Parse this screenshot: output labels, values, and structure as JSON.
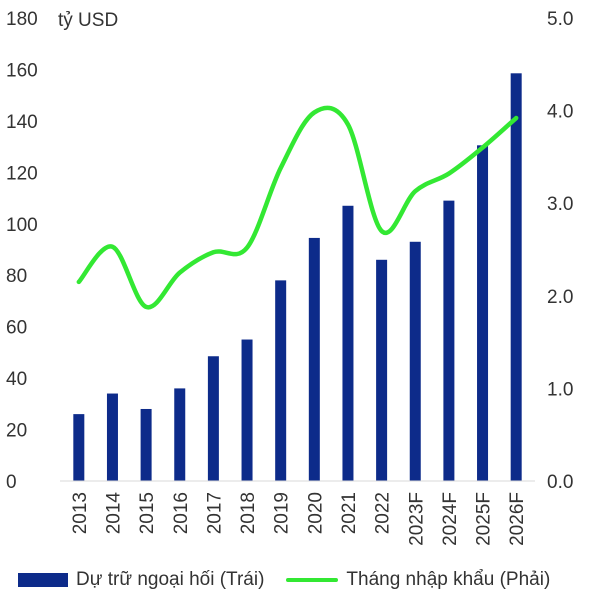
{
  "chart_data": {
    "type": "bar+line",
    "unit_label": "tỷ USD",
    "categories": [
      "2013",
      "2014",
      "2015",
      "2016",
      "2017",
      "2018",
      "2019",
      "2020",
      "2021",
      "2022",
      "2023F",
      "2024F",
      "2025F",
      "2026F"
    ],
    "series": [
      {
        "name": "Dự trữ ngoại hối (Trái)",
        "type": "bar",
        "axis": "left",
        "color": "#0d2b8a",
        "values": [
          26,
          34,
          28,
          36,
          48.5,
          55,
          78,
          94.5,
          107,
          86,
          93,
          109,
          130.5,
          158.5
        ]
      },
      {
        "name": "Tháng nhập khẩu (Phải)",
        "type": "line",
        "axis": "right",
        "color": "#33e833",
        "values": [
          2.15,
          2.53,
          1.88,
          2.25,
          2.47,
          2.52,
          3.38,
          3.98,
          3.85,
          2.7,
          3.13,
          3.32,
          3.6,
          3.92
        ]
      }
    ],
    "y_left": {
      "min": 0,
      "max": 180,
      "ticks": [
        "0",
        "20",
        "40",
        "60",
        "80",
        "100",
        "120",
        "140",
        "160",
        "180"
      ]
    },
    "y_right": {
      "min": 0,
      "max": 5,
      "ticks": [
        "0.0",
        "1.0",
        "2.0",
        "3.0",
        "4.0",
        "5.0"
      ]
    },
    "grid": false,
    "legend_position": "bottom"
  }
}
